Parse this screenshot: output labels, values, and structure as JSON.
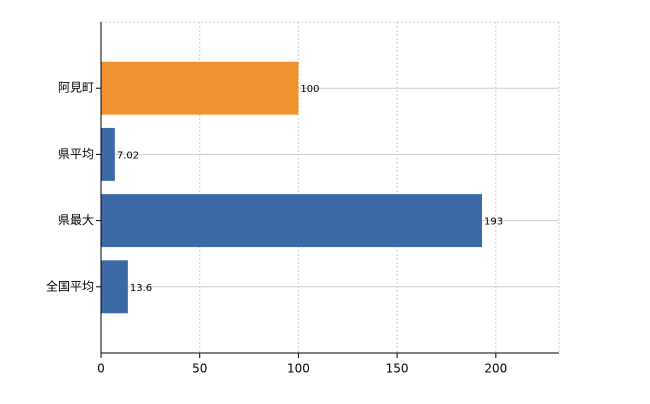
{
  "chart_data": {
    "type": "bar",
    "orientation": "horizontal",
    "categories": [
      "阿見町",
      "県平均",
      "県最大",
      "全国平均"
    ],
    "values": [
      100,
      7.02,
      193,
      13.6
    ],
    "colors": [
      "#f0922f",
      "#3b6aa6",
      "#3b6aa6",
      "#3b6aa6"
    ],
    "xlim": [
      0,
      232
    ],
    "xticks": [
      0,
      50,
      100,
      150,
      200
    ],
    "grid": true
  }
}
